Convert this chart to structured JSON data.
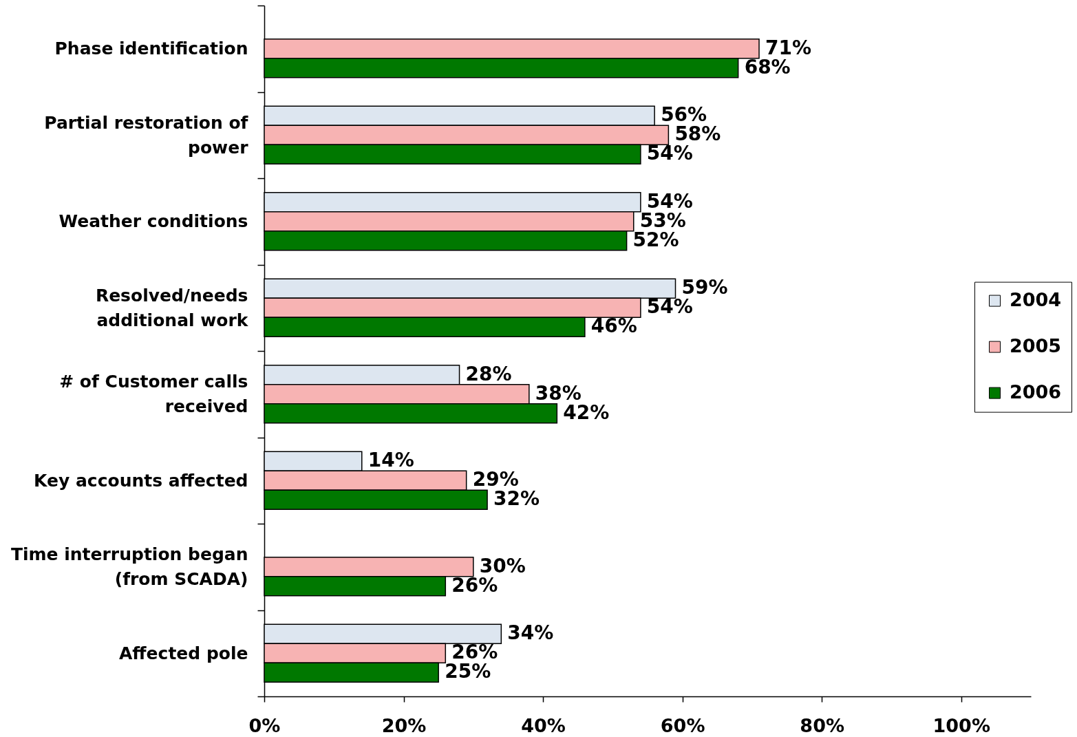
{
  "chart_data": {
    "type": "bar",
    "orientation": "horizontal",
    "categories": [
      "Phase identification",
      "Partial restoration of power",
      "Weather conditions",
      "Resolved/needs additional work",
      "# of Customer calls received",
      "Key accounts affected",
      "Time interruption began (from SCADA)",
      "Affected pole"
    ],
    "series": [
      {
        "name": "2004",
        "color": "#dde6f0",
        "values": [
          null,
          56,
          54,
          59,
          28,
          14,
          null,
          34
        ],
        "value_labels": [
          null,
          "56%",
          "54%",
          "59%",
          "28%",
          "14%",
          null,
          "34%"
        ]
      },
      {
        "name": "2005",
        "color": "#f7b3b3",
        "values": [
          71,
          58,
          53,
          54,
          38,
          29,
          30,
          26
        ],
        "value_labels": [
          "71%",
          "58%",
          "53%",
          "54%",
          "38%",
          "29%",
          "30%",
          "26%"
        ]
      },
      {
        "name": "2006",
        "color": "#007800",
        "values": [
          68,
          54,
          52,
          46,
          42,
          32,
          26,
          25
        ],
        "value_labels": [
          "68%",
          "54%",
          "52%",
          "46%",
          "42%",
          "32%",
          "26%",
          "25%"
        ]
      }
    ],
    "xlim": [
      0,
      110
    ],
    "xticks": [
      {
        "value": 0,
        "label": "0%"
      },
      {
        "value": 20,
        "label": "20%"
      },
      {
        "value": 40,
        "label": "40%"
      },
      {
        "value": 60,
        "label": "60%"
      },
      {
        "value": 80,
        "label": "80%"
      },
      {
        "value": 100,
        "label": "100%"
      }
    ],
    "legend": "right",
    "grid": false
  }
}
